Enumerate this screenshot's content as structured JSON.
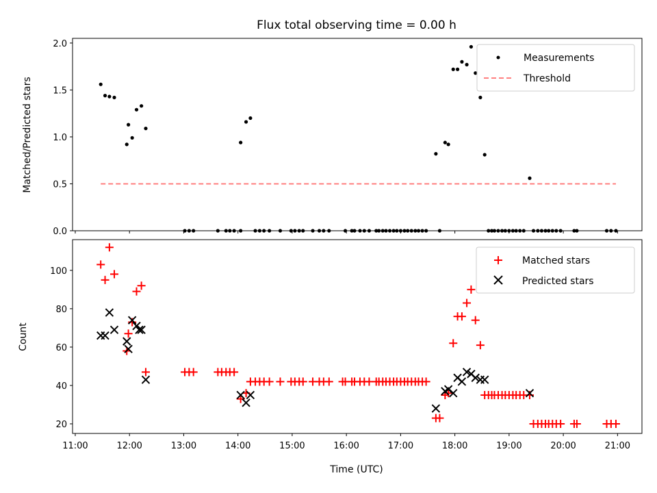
{
  "chart_data": {
    "type": "scatter",
    "title": "Flux total observing time = 0.00 h",
    "xlabel": "Time (UTC)",
    "x_tick_labels": [
      "11:00",
      "12:00",
      "13:00",
      "14:00",
      "15:00",
      "16:00",
      "17:00",
      "18:00",
      "19:00",
      "20:00",
      "21:00"
    ],
    "x_tick_hours": [
      11,
      12,
      13,
      14,
      15,
      16,
      17,
      18,
      19,
      20,
      21
    ],
    "xlim": [
      10.95,
      21.45
    ],
    "panels": [
      {
        "ylabel": "Matched/Predicted stars",
        "ylim": [
          0,
          2.05
        ],
        "yticks": [
          0,
          0.5,
          1.0,
          1.5,
          2.0
        ],
        "ytick_labels": [
          "0.0",
          "0.5",
          "1.0",
          "1.5",
          "2.0"
        ],
        "legend": [
          "Measurements",
          "Threshold"
        ],
        "series": [
          {
            "name": "Measurements",
            "marker": "dot",
            "color": "#000000",
            "points": [
              [
                11.47,
                1.56
              ],
              [
                11.55,
                1.44
              ],
              [
                11.63,
                1.43
              ],
              [
                11.72,
                1.42
              ],
              [
                11.95,
                0.92
              ],
              [
                11.98,
                1.13
              ],
              [
                12.05,
                0.99
              ],
              [
                12.13,
                1.29
              ],
              [
                12.22,
                1.33
              ],
              [
                12.3,
                1.09
              ],
              [
                13.02,
                0
              ],
              [
                13.1,
                0
              ],
              [
                13.18,
                0
              ],
              [
                13.63,
                0
              ],
              [
                13.78,
                0
              ],
              [
                13.85,
                0
              ],
              [
                13.93,
                0
              ],
              [
                14.05,
                0.94
              ],
              [
                14.05,
                0
              ],
              [
                14.15,
                1.16
              ],
              [
                14.23,
                1.2
              ],
              [
                14.32,
                0
              ],
              [
                14.4,
                0
              ],
              [
                14.48,
                0
              ],
              [
                14.58,
                0
              ],
              [
                14.78,
                0
              ],
              [
                14.98,
                0
              ],
              [
                15.05,
                0
              ],
              [
                15.13,
                0
              ],
              [
                15.2,
                0
              ],
              [
                15.38,
                0
              ],
              [
                15.5,
                0
              ],
              [
                15.58,
                0
              ],
              [
                15.68,
                0
              ],
              [
                15.98,
                0
              ],
              [
                16.1,
                0
              ],
              [
                16.15,
                0
              ],
              [
                16.25,
                0
              ],
              [
                16.33,
                0
              ],
              [
                16.42,
                0
              ],
              [
                16.55,
                0
              ],
              [
                16.6,
                0
              ],
              [
                16.67,
                0
              ],
              [
                16.73,
                0
              ],
              [
                16.8,
                0
              ],
              [
                16.87,
                0
              ],
              [
                16.93,
                0
              ],
              [
                17.0,
                0
              ],
              [
                17.07,
                0
              ],
              [
                17.13,
                0
              ],
              [
                17.2,
                0
              ],
              [
                17.27,
                0
              ],
              [
                17.33,
                0
              ],
              [
                17.4,
                0
              ],
              [
                17.47,
                0
              ],
              [
                17.65,
                0.82
              ],
              [
                17.72,
                0
              ],
              [
                17.82,
                0.94
              ],
              [
                17.88,
                0.92
              ],
              [
                17.97,
                1.72
              ],
              [
                18.05,
                1.72
              ],
              [
                18.13,
                1.8
              ],
              [
                18.22,
                1.77
              ],
              [
                18.3,
                1.96
              ],
              [
                18.38,
                1.68
              ],
              [
                18.47,
                1.42
              ],
              [
                18.55,
                0.81
              ],
              [
                18.62,
                0
              ],
              [
                18.68,
                0
              ],
              [
                18.73,
                0
              ],
              [
                18.8,
                0
              ],
              [
                18.87,
                0
              ],
              [
                18.93,
                0
              ],
              [
                19.0,
                0
              ],
              [
                19.07,
                0
              ],
              [
                19.13,
                0
              ],
              [
                19.2,
                0
              ],
              [
                19.27,
                0
              ],
              [
                19.38,
                0.56
              ],
              [
                19.45,
                0
              ],
              [
                19.53,
                0
              ],
              [
                19.6,
                0
              ],
              [
                19.67,
                0
              ],
              [
                19.73,
                0
              ],
              [
                19.8,
                0
              ],
              [
                19.87,
                0
              ],
              [
                19.95,
                0
              ],
              [
                20.2,
                0
              ],
              [
                20.25,
                0
              ],
              [
                20.8,
                0
              ],
              [
                20.88,
                0
              ],
              [
                20.97,
                0
              ]
            ]
          },
          {
            "name": "Threshold",
            "style": "dashed",
            "color": "#ff7f7f",
            "x": [
              11.47,
              20.97
            ],
            "y": [
              0.5,
              0.5
            ]
          }
        ]
      },
      {
        "ylabel": "Count",
        "ylim": [
          15,
          116
        ],
        "yticks": [
          20,
          40,
          60,
          80,
          100
        ],
        "ytick_labels": [
          "20",
          "40",
          "60",
          "80",
          "100"
        ],
        "legend": [
          "Matched stars",
          "Predicted stars"
        ],
        "series": [
          {
            "name": "Matched stars",
            "marker": "plus",
            "color": "#ff0000",
            "points": [
              [
                11.47,
                103
              ],
              [
                11.55,
                95
              ],
              [
                11.63,
                112
              ],
              [
                11.72,
                98
              ],
              [
                11.95,
                58
              ],
              [
                11.98,
                67
              ],
              [
                12.05,
                73
              ],
              [
                12.13,
                89
              ],
              [
                12.22,
                92
              ],
              [
                12.3,
                47
              ],
              [
                13.02,
                47
              ],
              [
                13.1,
                47
              ],
              [
                13.18,
                47
              ],
              [
                13.63,
                47
              ],
              [
                13.7,
                47
              ],
              [
                13.78,
                47
              ],
              [
                13.85,
                47
              ],
              [
                13.93,
                47
              ],
              [
                14.05,
                33
              ],
              [
                14.15,
                36
              ],
              [
                14.23,
                42
              ],
              [
                14.32,
                42
              ],
              [
                14.4,
                42
              ],
              [
                14.48,
                42
              ],
              [
                14.58,
                42
              ],
              [
                14.78,
                42
              ],
              [
                14.98,
                42
              ],
              [
                15.05,
                42
              ],
              [
                15.13,
                42
              ],
              [
                15.2,
                42
              ],
              [
                15.38,
                42
              ],
              [
                15.5,
                42
              ],
              [
                15.58,
                42
              ],
              [
                15.68,
                42
              ],
              [
                15.93,
                42
              ],
              [
                15.98,
                42
              ],
              [
                16.1,
                42
              ],
              [
                16.15,
                42
              ],
              [
                16.25,
                42
              ],
              [
                16.33,
                42
              ],
              [
                16.42,
                42
              ],
              [
                16.55,
                42
              ],
              [
                16.6,
                42
              ],
              [
                16.67,
                42
              ],
              [
                16.73,
                42
              ],
              [
                16.8,
                42
              ],
              [
                16.87,
                42
              ],
              [
                16.93,
                42
              ],
              [
                17.0,
                42
              ],
              [
                17.07,
                42
              ],
              [
                17.13,
                42
              ],
              [
                17.2,
                42
              ],
              [
                17.27,
                42
              ],
              [
                17.33,
                42
              ],
              [
                17.4,
                42
              ],
              [
                17.47,
                42
              ],
              [
                17.65,
                23
              ],
              [
                17.72,
                23
              ],
              [
                17.82,
                35
              ],
              [
                17.88,
                36
              ],
              [
                17.97,
                62
              ],
              [
                18.05,
                76
              ],
              [
                18.13,
                76
              ],
              [
                18.22,
                83
              ],
              [
                18.3,
                90
              ],
              [
                18.38,
                74
              ],
              [
                18.47,
                61
              ],
              [
                18.55,
                35
              ],
              [
                18.62,
                35
              ],
              [
                18.68,
                35
              ],
              [
                18.73,
                35
              ],
              [
                18.8,
                35
              ],
              [
                18.87,
                35
              ],
              [
                18.93,
                35
              ],
              [
                19.0,
                35
              ],
              [
                19.07,
                35
              ],
              [
                19.13,
                35
              ],
              [
                19.2,
                35
              ],
              [
                19.27,
                35
              ],
              [
                19.38,
                35
              ],
              [
                19.45,
                20
              ],
              [
                19.53,
                20
              ],
              [
                19.6,
                20
              ],
              [
                19.67,
                20
              ],
              [
                19.73,
                20
              ],
              [
                19.8,
                20
              ],
              [
                19.87,
                20
              ],
              [
                19.95,
                20
              ],
              [
                20.2,
                20
              ],
              [
                20.25,
                20
              ],
              [
                20.8,
                20
              ],
              [
                20.88,
                20
              ],
              [
                20.97,
                20
              ]
            ]
          },
          {
            "name": "Predicted stars",
            "marker": "x",
            "color": "#000000",
            "points": [
              [
                11.47,
                66
              ],
              [
                11.55,
                66
              ],
              [
                11.63,
                78
              ],
              [
                11.72,
                69
              ],
              [
                11.95,
                63
              ],
              [
                11.98,
                59
              ],
              [
                12.05,
                74
              ],
              [
                12.13,
                71
              ],
              [
                12.18,
                69
              ],
              [
                12.22,
                69
              ],
              [
                12.3,
                43
              ],
              [
                14.05,
                35
              ],
              [
                14.15,
                31
              ],
              [
                14.23,
                35
              ],
              [
                17.65,
                28
              ],
              [
                17.82,
                37
              ],
              [
                17.88,
                38
              ],
              [
                17.97,
                36
              ],
              [
                18.05,
                44
              ],
              [
                18.13,
                42
              ],
              [
                18.22,
                47
              ],
              [
                18.3,
                46
              ],
              [
                18.38,
                44
              ],
              [
                18.47,
                43
              ],
              [
                18.55,
                43
              ],
              [
                19.38,
                36
              ]
            ]
          }
        ]
      }
    ]
  }
}
